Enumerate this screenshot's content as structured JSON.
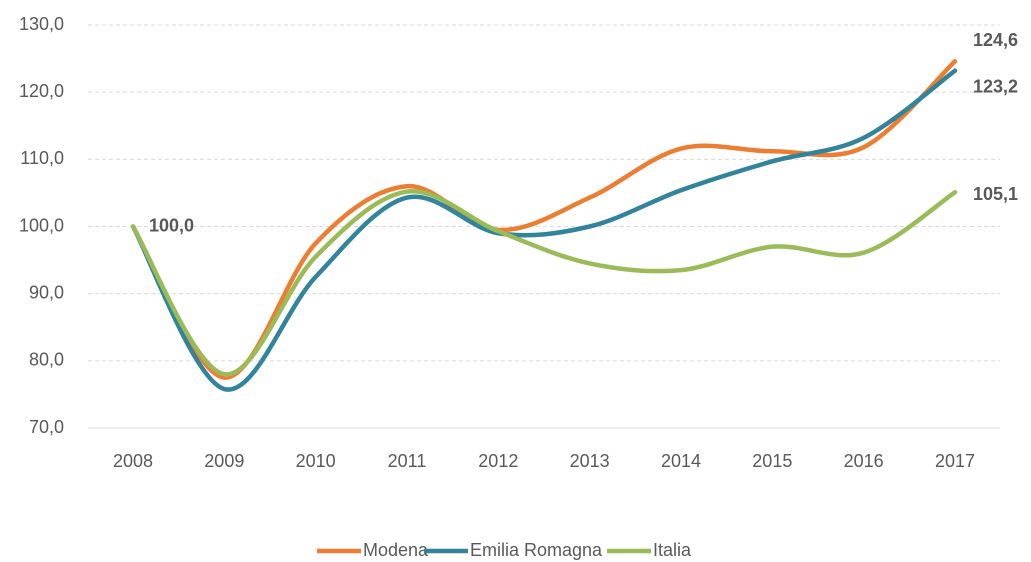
{
  "chart_data": {
    "type": "line",
    "categories": [
      "2008",
      "2009",
      "2010",
      "2011",
      "2012",
      "2013",
      "2014",
      "2015",
      "2016",
      "2017"
    ],
    "series": [
      {
        "name": "Modena",
        "color": "#ed7d31",
        "values": [
          100,
          77.5,
          97.5,
          106,
          99.5,
          104.3,
          111.6,
          111.2,
          111.8,
          124.6
        ],
        "value_labels": [
          "100,0",
          null,
          null,
          null,
          null,
          null,
          null,
          null,
          null,
          "124,6"
        ]
      },
      {
        "name": "Emilia Romagna",
        "color": "#31849b",
        "values": [
          100,
          75.8,
          92.5,
          104.3,
          99,
          100,
          105.4,
          109.7,
          113.2,
          123.2
        ],
        "value_labels": [
          null,
          null,
          null,
          null,
          null,
          null,
          null,
          null,
          null,
          "123,2"
        ]
      },
      {
        "name": "Italia",
        "color": "#9bbb59",
        "values": [
          100,
          78,
          95.5,
          105.2,
          99.3,
          94.5,
          93.5,
          97,
          96.1,
          105.1
        ],
        "value_labels": [
          null,
          null,
          null,
          null,
          null,
          null,
          null,
          null,
          null,
          "105,1"
        ]
      }
    ],
    "ylim": [
      70,
      130
    ],
    "yticks": [
      {
        "value": 70,
        "label": "70,0"
      },
      {
        "value": 80,
        "label": "80,0"
      },
      {
        "value": 90,
        "label": "90,0"
      },
      {
        "value": 100,
        "label": "100,0"
      },
      {
        "value": 110,
        "label": "110,0"
      },
      {
        "value": 120,
        "label": "120,0"
      },
      {
        "value": 130,
        "label": "130,0"
      }
    ],
    "grid": true,
    "legend": "bottom",
    "smooth": true
  }
}
